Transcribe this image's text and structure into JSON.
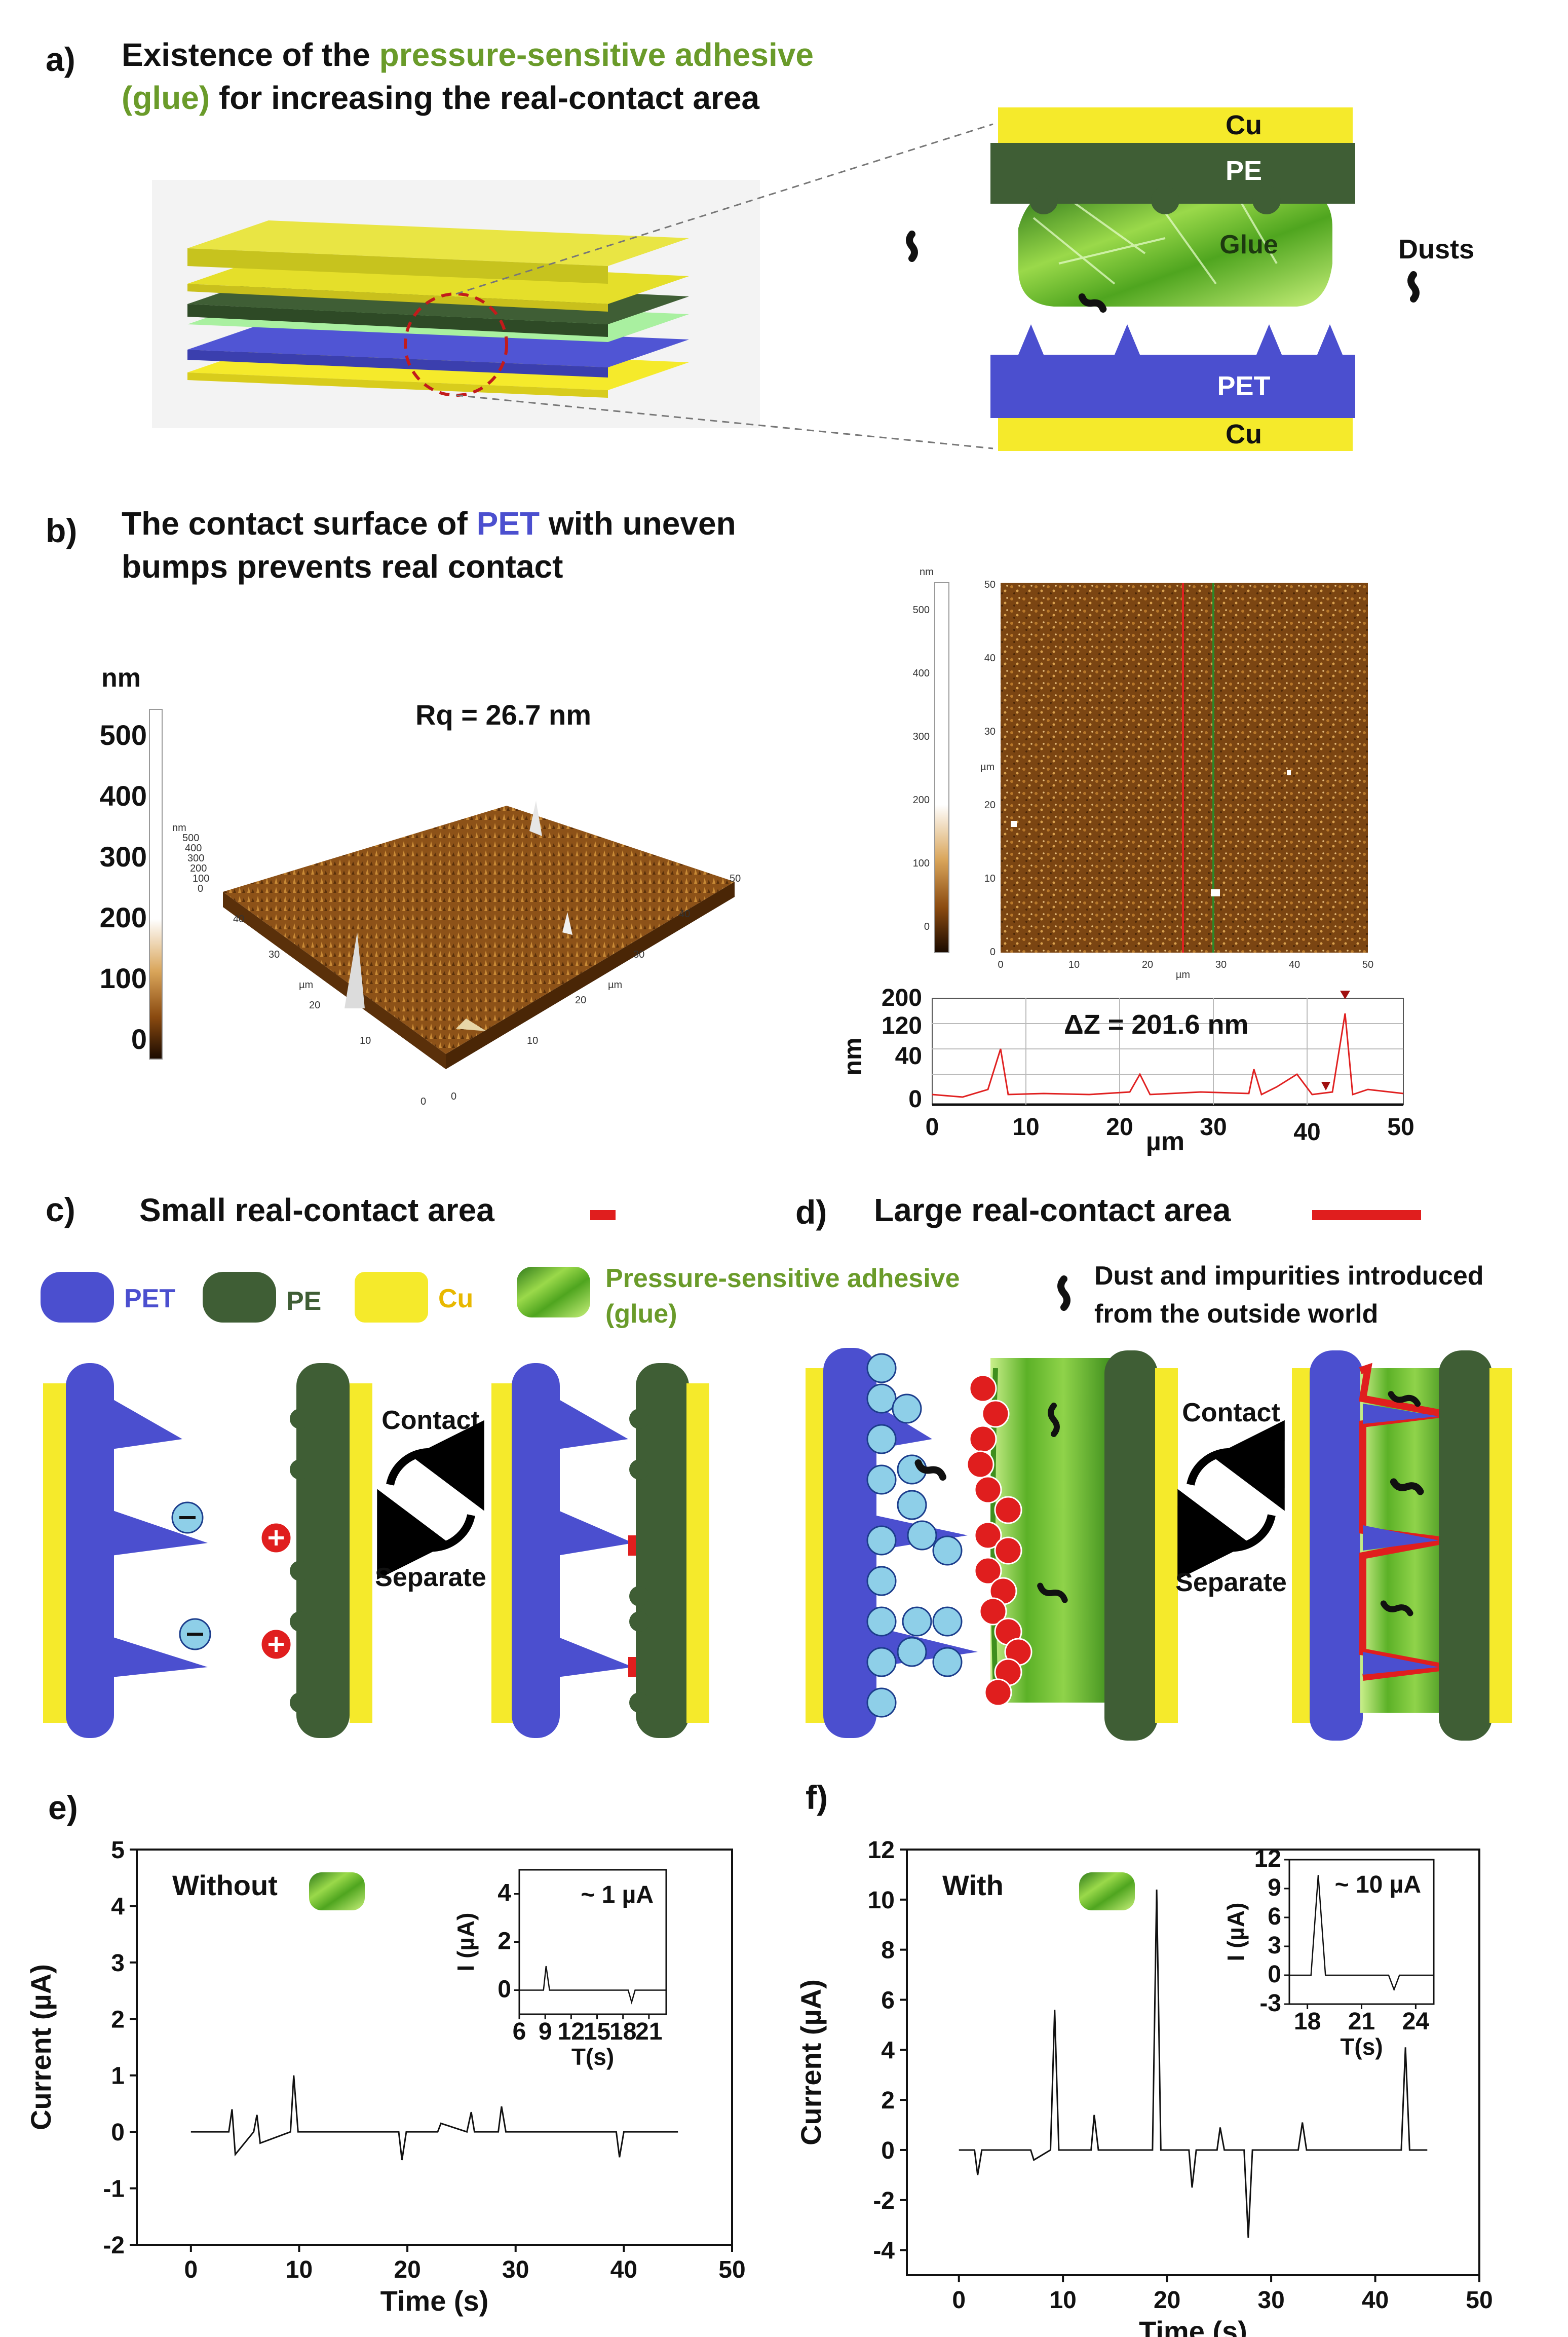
{
  "colors": {
    "pet": "#4b4fcf",
    "pe": "#3f5e35",
    "cu": "#f5ea2b",
    "glue": "#6fbf2a",
    "accent_green": "#6a9b2a",
    "red": "#e01e1e",
    "neg_fill": "#8ecfe8"
  },
  "panel_a": {
    "letter": "a)",
    "title_prefix": "Existence of the ",
    "title_green": "pressure-sensitive adhesive",
    "title_line2_green": "(glue)",
    "title_line2_rest": " for increasing the real-contact area",
    "cu_top": "Cu",
    "pe": "PE",
    "glue": "Glue",
    "dusts": "Dusts",
    "pet": "PET",
    "cu_bottom": "Cu"
  },
  "panel_b": {
    "letter": "b)",
    "title_prefix": "The contact surface of ",
    "title_pet": "PET",
    "title_suffix": " with uneven",
    "title_line2": "bumps prevents real contact",
    "colorbar_unit": "nm",
    "colorbar_ticks": [
      "500",
      "400",
      "300",
      "200",
      "100",
      "0"
    ],
    "rq": "Rq = 26.7 nm",
    "mini_ticks": [
      "nm",
      "500",
      "400",
      "300",
      "200",
      "100",
      "0"
    ],
    "axis3d_right": [
      "0",
      "10",
      "20",
      "30",
      "40",
      "50"
    ],
    "axis3d_left": [
      "0",
      "10",
      "20",
      "30",
      "40"
    ],
    "axis3d_unit": "µm",
    "afm_cbar_unit": "nm",
    "afm_cbar_ticks": [
      "500",
      "400",
      "300",
      "200",
      "100",
      "0"
    ],
    "afm_y_ticks": [
      "0",
      "10",
      "20",
      "30",
      "40",
      "50"
    ],
    "afm_x_ticks": [
      "0",
      "10",
      "20",
      "30",
      "40",
      "50"
    ],
    "afm_unit": "µm",
    "profile_ylabel": "nm",
    "profile_y_ticks": [
      "200",
      "120",
      "40",
      "0"
    ],
    "profile_x_ticks": [
      "0",
      "10",
      "20",
      "30",
      "40",
      "50"
    ],
    "profile_xlabel": "µm",
    "delta_z": "ΔZ = 201.6 nm"
  },
  "panel_c": {
    "letter": "c)",
    "title": "Small real-contact area",
    "legend_pet": "PET",
    "legend_pe": "PE",
    "legend_cu": "Cu",
    "contact": "Contact",
    "separate": "Separate"
  },
  "panel_d": {
    "letter": "d)",
    "title": "Large real-contact area",
    "legend_glue_line1": "Pressure-sensitive adhesive",
    "legend_glue_line2": "(glue)",
    "legend_dust_line1": "Dust and impurities introduced",
    "legend_dust_line2": "from the outside world",
    "contact": "Contact",
    "separate": "Separate"
  },
  "chart_data": [
    {
      "panel": "e)",
      "type": "line",
      "label_text": "Without",
      "xlabel": "Time (s)",
      "ylabel": "Current (µA)",
      "xlim": [
        -5,
        50
      ],
      "ylim": [
        -2,
        5
      ],
      "x_ticks": [
        "0",
        "10",
        "20",
        "30",
        "40",
        "50"
      ],
      "y_ticks": [
        "5",
        "4",
        "3",
        "2",
        "1",
        "0",
        "-1",
        "-2"
      ],
      "series": [
        {
          "x": [
            0,
            3.5,
            3.8,
            4.1,
            5.8,
            6.1,
            6.4,
            9.2,
            9.5,
            9.9,
            19.2,
            19.5,
            19.9,
            22.8,
            23.1,
            25.5,
            25.9,
            26.2,
            28.4,
            28.7,
            29.1,
            39.3,
            39.6,
            40,
            45
          ],
          "y": [
            0,
            0,
            0.4,
            -0.4,
            0,
            0.3,
            -0.2,
            0,
            1.0,
            0,
            0,
            -0.5,
            0,
            0,
            0.15,
            0,
            0.35,
            0,
            0,
            0.45,
            0,
            0,
            -0.45,
            0,
            0
          ]
        }
      ],
      "inset": {
        "annotation": "~ 1 µA",
        "xlabel": "T(s)",
        "ylabel": "I (µA)",
        "xlim": [
          6,
          23
        ],
        "ylim": [
          -1,
          5
        ],
        "x_ticks": [
          "6",
          "9",
          "12",
          "15",
          "18",
          "21"
        ],
        "y_ticks": [
          "4",
          "2",
          "0"
        ],
        "series": [
          {
            "x": [
              6,
              8.8,
              9.1,
              9.5,
              18.6,
              19,
              19.4,
              23
            ],
            "y": [
              0,
              0,
              1,
              0,
              0,
              -0.5,
              0,
              0
            ]
          }
        ]
      }
    },
    {
      "panel": "f)",
      "type": "line",
      "label_text": "With",
      "xlabel": "Time (s)",
      "ylabel": "Current (µA)",
      "xlim": [
        -5,
        50
      ],
      "ylim": [
        -5,
        12
      ],
      "x_ticks": [
        "0",
        "10",
        "20",
        "30",
        "40",
        "50"
      ],
      "y_ticks": [
        "12",
        "10",
        "8",
        "6",
        "4",
        "2",
        "0",
        "-2",
        "-4"
      ],
      "series": [
        {
          "x": [
            0,
            1.5,
            1.8,
            2.2,
            6.9,
            7.2,
            8.8,
            9.2,
            9.6,
            12.7,
            13,
            13.4,
            18.6,
            19,
            19.4,
            22.1,
            22.4,
            22.8,
            24.8,
            25.1,
            25.5,
            27.4,
            27.8,
            28.2,
            32.6,
            33,
            33.4,
            42.5,
            42.9,
            43.3,
            45
          ],
          "y": [
            0,
            0,
            -1.0,
            0,
            0,
            -0.4,
            0,
            5.6,
            0,
            0,
            1.4,
            0,
            0,
            10.4,
            0,
            0,
            -1.5,
            0,
            0,
            0.9,
            0,
            0,
            -3.5,
            0,
            0,
            1.1,
            0,
            0,
            4.1,
            0,
            0
          ]
        }
      ],
      "inset": {
        "annotation": "~ 10 µA",
        "xlabel": "T(s)",
        "ylabel": "I (µA)",
        "xlim": [
          17,
          25
        ],
        "ylim": [
          -3,
          12
        ],
        "x_ticks": [
          "18",
          "21",
          "24"
        ],
        "y_ticks": [
          "12",
          "9",
          "6",
          "3",
          "0",
          "-3"
        ],
        "series": [
          {
            "x": [
              17,
              18.2,
              18.6,
              19,
              22.5,
              22.8,
              23.1,
              25
            ],
            "y": [
              0,
              0,
              10.4,
              0,
              0,
              -1.5,
              0,
              0
            ]
          }
        ]
      }
    }
  ]
}
